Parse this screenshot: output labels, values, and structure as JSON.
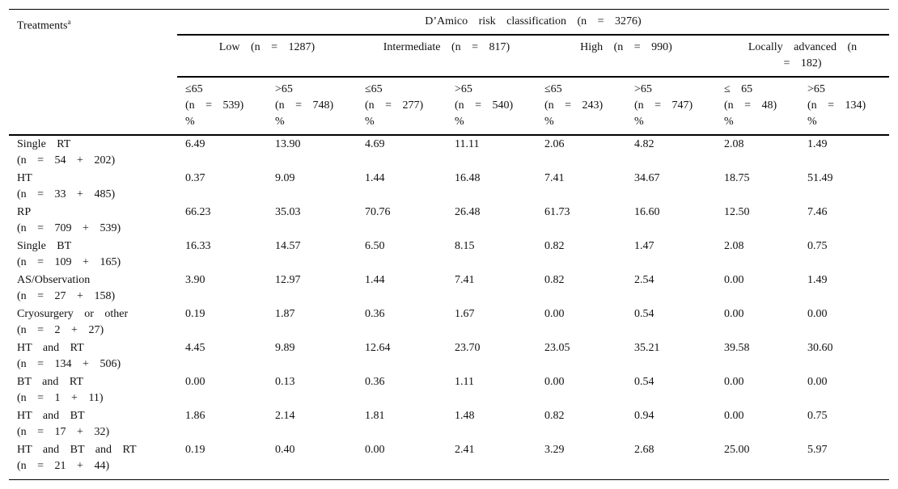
{
  "header": {
    "title": "Treatments",
    "footnote_mark": "a",
    "group_title": "D’Amico risk classification (n = 3276)",
    "groups": [
      "Low (n = 1287)",
      "Intermediate (n = 817)",
      "High (n = 990)",
      "Locally advanced (n = 182)"
    ],
    "columns": [
      {
        "age": "≤65",
        "n": "(n = 539)",
        "unit": "%"
      },
      {
        "age": ">65",
        "n": "(n = 748)",
        "unit": "%"
      },
      {
        "age": "≤65",
        "n": "(n = 277)",
        "unit": "%"
      },
      {
        "age": ">65",
        "n": "(n = 540)",
        "unit": "%"
      },
      {
        "age": "≤65",
        "n": "(n = 243)",
        "unit": "%"
      },
      {
        "age": ">65",
        "n": "(n = 747)",
        "unit": "%"
      },
      {
        "age": "≤ 65",
        "n": "(n = 48)",
        "unit": "%"
      },
      {
        "age": ">65",
        "n": "(n = 134)",
        "unit": "%"
      }
    ]
  },
  "table": {
    "rows": [
      {
        "treatment": "Single RT",
        "n": "(n = 54 + 202)",
        "values": [
          "6.49",
          "13.90",
          "4.69",
          "11.11",
          "2.06",
          "4.82",
          "2.08",
          "1.49"
        ]
      },
      {
        "treatment": "HT",
        "n": "(n = 33 + 485)",
        "values": [
          "0.37",
          "9.09",
          "1.44",
          "16.48",
          "7.41",
          "34.67",
          "18.75",
          "51.49"
        ]
      },
      {
        "treatment": "RP",
        "n": "(n = 709 + 539)",
        "values": [
          "66.23",
          "35.03",
          "70.76",
          "26.48",
          "61.73",
          "16.60",
          "12.50",
          "7.46"
        ]
      },
      {
        "treatment": "Single BT",
        "n": "(n = 109 + 165)",
        "values": [
          "16.33",
          "14.57",
          "6.50",
          "8.15",
          "0.82",
          "1.47",
          "2.08",
          "0.75"
        ]
      },
      {
        "treatment": "AS/Observation",
        "n": "(n = 27 + 158)",
        "values": [
          "3.90",
          "12.97",
          "1.44",
          "7.41",
          "0.82",
          "2.54",
          "0.00",
          "1.49"
        ]
      },
      {
        "treatment": "Cryosurgery or other",
        "n": "(n = 2 + 27)",
        "values": [
          "0.19",
          "1.87",
          "0.36",
          "1.67",
          "0.00",
          "0.54",
          "0.00",
          "0.00"
        ]
      },
      {
        "treatment": "HT and RT",
        "n": "(n = 134 + 506)",
        "values": [
          "4.45",
          "9.89",
          "12.64",
          "23.70",
          "23.05",
          "35.21",
          "39.58",
          "30.60"
        ]
      },
      {
        "treatment": "BT and RT",
        "n": "(n = 1 + 11)",
        "values": [
          "0.00",
          "0.13",
          "0.36",
          "1.11",
          "0.00",
          "0.54",
          "0.00",
          "0.00"
        ]
      },
      {
        "treatment": "HT and BT",
        "n": "(n = 17 + 32)",
        "values": [
          "1.86",
          "2.14",
          "1.81",
          "1.48",
          "0.82",
          "0.94",
          "0.00",
          "0.75"
        ]
      },
      {
        "treatment": "HT and BT and RT",
        "n": "(n = 21 + 44)",
        "values": [
          "0.19",
          "0.40",
          "0.00",
          "2.41",
          "3.29",
          "2.68",
          "25.00",
          "5.97"
        ]
      }
    ]
  }
}
